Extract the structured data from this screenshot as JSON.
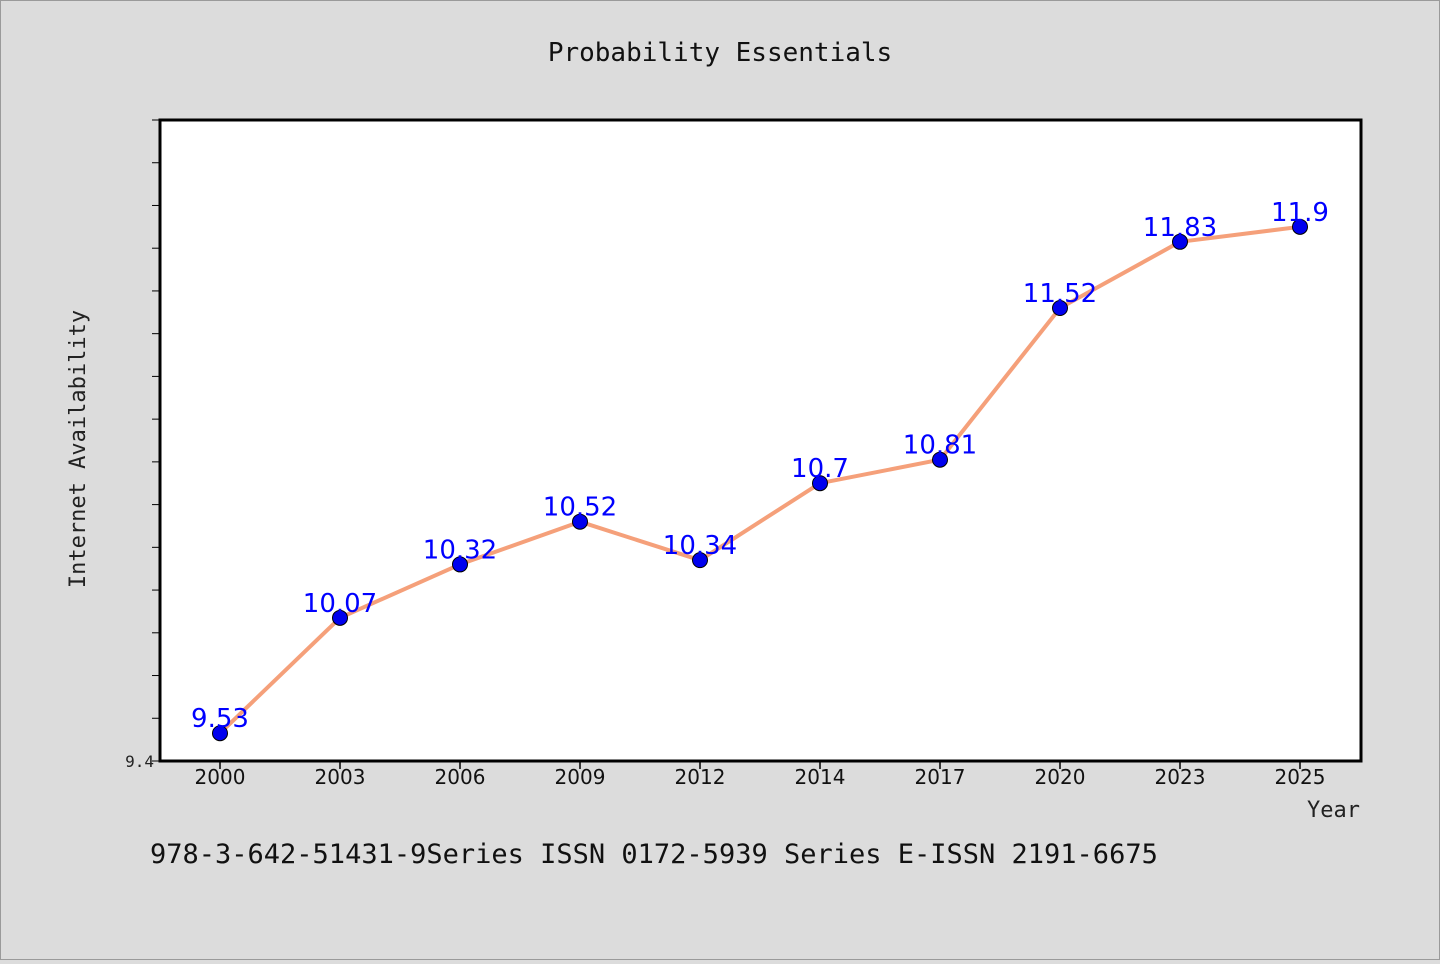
{
  "chart_data": {
    "type": "line",
    "title": "Probability Essentials",
    "xlabel": "Year",
    "ylabel": "Internet Availability",
    "categories": [
      "2000",
      "2003",
      "2006",
      "2009",
      "2012",
      "2014",
      "2017",
      "2020",
      "2023",
      "2025"
    ],
    "series": [
      {
        "values": [
          9.53,
          10.07,
          10.32,
          10.52,
          10.34,
          10.7,
          10.81,
          11.52,
          11.83,
          11.9
        ],
        "data_labels": [
          "9.53",
          "10.07",
          "10.32",
          "10.52",
          "10.34",
          "10.7",
          "10.81",
          "11.52",
          "11.83",
          "11.9"
        ],
        "line_color": "#f5a07a",
        "marker_color": "#0000ee",
        "label_color": "#0000ff"
      }
    ],
    "ylim": [
      9.4,
      12.4
    ],
    "yticks": [
      {
        "value": 9.4,
        "label": "9.4"
      }
    ],
    "grid": false,
    "legend": "none"
  },
  "footer": {
    "text": "978-3-642-51431-9Series ISSN 0172-5939 Series E-ISSN 2191-6675"
  }
}
